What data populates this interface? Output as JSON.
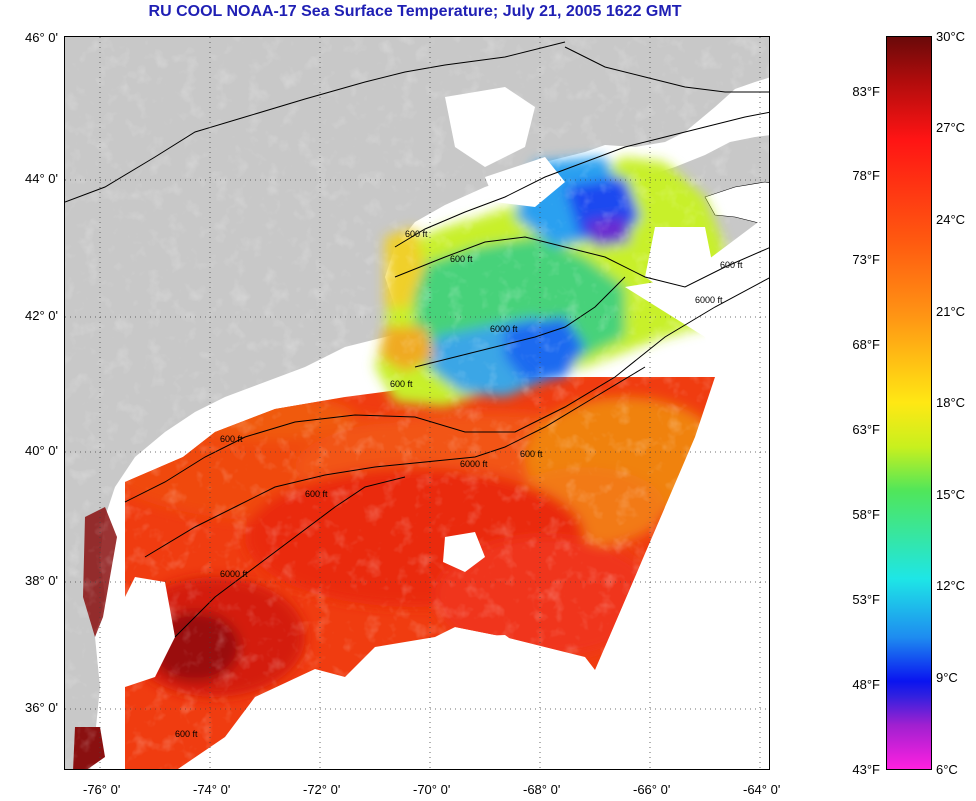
{
  "title": "RU COOL  NOAA-17  Sea Surface Temperature;  July 21, 2005 1622 GMT",
  "map": {
    "lat_labels": [
      "46° 0'",
      "44° 0'",
      "42° 0'",
      "40° 0'",
      "38° 0'",
      "36° 0'"
    ],
    "lon_labels": [
      "-76° 0'",
      "-74° 0'",
      "-72° 0'",
      "-70° 0'",
      "-68° 0'",
      "-66° 0'",
      "-64° 0'"
    ],
    "contour_labels": [
      "600 ft",
      "6000 ft",
      "600 ft",
      "6000 ft",
      "600 ft",
      "600 ft",
      "6000 ft",
      "600 ft",
      "600 ft",
      "6000 ft",
      "600 ft",
      "600 ft"
    ],
    "colors": {
      "land": "#c8c8c8",
      "cloud": "#ffffff",
      "contour": "#000000"
    }
  },
  "colorbar": {
    "celsius": [
      "30°C",
      "27°C",
      "24°C",
      "21°C",
      "18°C",
      "15°C",
      "12°C",
      "9°C",
      "6°C"
    ],
    "fahrenheit": [
      "83°F",
      "78°F",
      "73°F",
      "68°F",
      "63°F",
      "58°F",
      "53°F",
      "48°F",
      "43°F"
    ],
    "min_c": 6,
    "max_c": 30
  }
}
